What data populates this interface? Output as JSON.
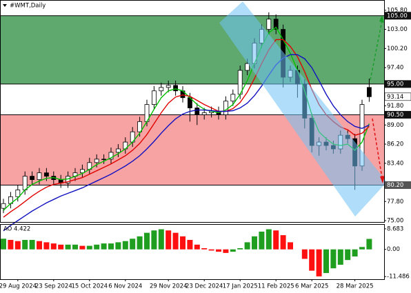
{
  "chart_data": [
    {
      "type": "candlestick",
      "title": "#WMT,Daily",
      "categories": [
        null,
        null,
        "29 Aug 2024",
        null,
        null,
        null,
        null,
        "23 Sep 2024",
        null,
        null,
        null,
        null,
        "15 Oct 2024",
        null,
        null,
        null,
        null,
        "6 Nov 2024",
        null,
        null,
        null,
        null,
        null,
        "29 Nov 2024",
        null,
        null,
        null,
        null,
        "23 Dec 2024",
        null,
        null,
        null,
        null,
        "17 Jan 2025",
        null,
        null,
        null,
        null,
        "11 Feb 2025",
        null,
        null,
        null,
        null,
        "6 Mar 2025",
        null,
        null,
        null,
        null,
        null,
        "28 Mar 2025",
        null,
        null
      ],
      "open": [
        76.8,
        77.5,
        78.5,
        79.5,
        81.5,
        81,
        82,
        81.5,
        81,
        80.5,
        81.5,
        82,
        82.5,
        83.5,
        84,
        84,
        85,
        85.5,
        86.5,
        88,
        89.5,
        92,
        94,
        94.5,
        94.8,
        94,
        93,
        91.5,
        90.5,
        90.8,
        91,
        90.5,
        92.5,
        93.5,
        97,
        98,
        101,
        103,
        104.5,
        103,
        96,
        97,
        95,
        90,
        86,
        86.5,
        86,
        85.5,
        87.5,
        87,
        83,
        94.5
      ],
      "high": [
        78.2,
        79.2,
        80.2,
        82.2,
        82.2,
        82.7,
        82.7,
        82.2,
        81.7,
        82.2,
        82.7,
        83.2,
        84.2,
        84.7,
        84.7,
        85.7,
        86.2,
        87.2,
        88.7,
        90.2,
        92.7,
        94.7,
        95.2,
        95.5,
        95.5,
        94.7,
        93.7,
        92.2,
        91.5,
        91.7,
        91.7,
        93.2,
        94.2,
        97.7,
        98.7,
        101.7,
        103.7,
        105.5,
        105.2,
        103.7,
        97.7,
        97.7,
        95.7,
        90.7,
        87.2,
        87.2,
        86.7,
        88.2,
        88.2,
        87.7,
        92.7,
        95.8
      ],
      "low": [
        76.1,
        76.8,
        77.8,
        78.8,
        80.3,
        80.3,
        80.8,
        80.3,
        79.8,
        79.8,
        80.8,
        81.3,
        81.8,
        82.8,
        83.3,
        83.3,
        84.3,
        84.8,
        85.8,
        87.3,
        88.8,
        91.3,
        93.3,
        93.8,
        93.3,
        92.3,
        89.5,
        89,
        89.8,
        90.1,
        89.8,
        89.8,
        91.8,
        92.8,
        96.3,
        97.3,
        100.3,
        102.3,
        102.3,
        94.5,
        95.3,
        93,
        88.5,
        85,
        84.5,
        85.3,
        84.8,
        84.8,
        86.3,
        79.5,
        82.3,
        92.4
      ],
      "close": [
        77.5,
        78.5,
        79.5,
        81.5,
        81,
        82,
        81.5,
        81,
        80.5,
        81.5,
        82,
        82.5,
        83.5,
        84,
        84,
        85,
        85.5,
        86.5,
        88,
        89.5,
        92,
        94,
        94.5,
        94.8,
        94,
        93,
        91.5,
        90.5,
        90.8,
        91,
        90.5,
        92.5,
        93.5,
        97,
        98,
        101,
        103,
        104.5,
        103,
        96,
        97,
        95,
        90,
        86,
        86.5,
        86,
        85.5,
        87.5,
        87,
        83,
        92,
        93.14
      ],
      "up_color": "#ffffff",
      "down_color": "#000000",
      "lines": [
        {
          "color": "#00c000",
          "values": [
            76.5,
            77.5,
            78.3,
            79.5,
            80.3,
            80.8,
            81.2,
            81.3,
            81,
            81.1,
            81.5,
            81.9,
            82.5,
            83.2,
            83.7,
            84.2,
            84.8,
            85.5,
            86.5,
            87.8,
            89.5,
            91.3,
            93,
            94,
            94.3,
            94,
            93,
            92,
            91.3,
            91,
            90.8,
            91.2,
            92,
            93.5,
            95.5,
            98,
            100.5,
            102.5,
            103.3,
            101.5,
            99.5,
            97,
            94,
            90.5,
            88,
            87,
            86.2,
            86,
            86.2,
            85.3,
            86.5,
            89.2
          ]
        },
        {
          "color": "#e00000",
          "values": [
            75.5,
            76.3,
            77,
            77.8,
            78.6,
            79.3,
            79.9,
            80.3,
            80.5,
            80.7,
            81,
            81.3,
            81.8,
            82.3,
            82.8,
            83.3,
            83.9,
            84.5,
            85.3,
            86.3,
            87.6,
            89.2,
            90.8,
            92.2,
            93.1,
            93.4,
            93.2,
            92.6,
            92,
            91.5,
            91,
            91,
            91.4,
            92.3,
            93.8,
            95.8,
            98,
            100,
            101.5,
            101.5,
            100.5,
            99,
            96.8,
            94.2,
            92,
            90.5,
            89.5,
            88.7,
            88.3,
            87.5,
            87.8,
            88.8
          ]
        },
        {
          "color": "#1010c0",
          "values": [
            73.5,
            74.3,
            75,
            75.7,
            76.4,
            77,
            77.6,
            78.1,
            78.6,
            79,
            79.4,
            79.8,
            80.3,
            80.8,
            81.3,
            81.8,
            82.4,
            83,
            83.7,
            84.5,
            85.5,
            86.6,
            87.8,
            88.9,
            89.9,
            90.6,
            91,
            91.2,
            91.2,
            91.1,
            91,
            91,
            91.1,
            91.5,
            92.2,
            93.3,
            94.7,
            96.3,
            97.8,
            98.8,
            99.3,
            99.3,
            98.7,
            97.4,
            95.5,
            93.5,
            91.8,
            90.5,
            89.5,
            88.8,
            88.5,
            89
          ]
        }
      ],
      "zones": [
        {
          "from": 95,
          "to": 105,
          "color": "#5fa96f"
        },
        {
          "from": 80.2,
          "to": 90.5,
          "color": "#f7a3a3"
        }
      ],
      "levels": [
        {
          "value": 105,
          "label": "105.00"
        },
        {
          "value": 95,
          "label": "95.00"
        },
        {
          "value": 90.5,
          "label": "90.50"
        },
        {
          "value": 80.2,
          "label": "80.20"
        }
      ],
      "ylim": [
        74.8,
        107.2
      ],
      "yticks": [
        {
          "value": 105.8,
          "label": "105.80"
        },
        {
          "value": 103,
          "label": "103.00"
        },
        {
          "value": 100.2,
          "label": "100.20"
        },
        {
          "value": 97.4,
          "label": "97.40"
        },
        {
          "value": 91.8,
          "label": "91.80"
        },
        {
          "value": 89,
          "label": "89.00"
        },
        {
          "value": 86.2,
          "label": "86.20"
        },
        {
          "value": 83.4,
          "label": "83.40"
        },
        {
          "value": 77.8,
          "label": "77.80"
        },
        {
          "value": 75,
          "label": "75.00"
        }
      ]
    },
    {
      "type": "bar",
      "title": "AO",
      "values": [
        4.5,
        4,
        3.5,
        4,
        4,
        3.5,
        3,
        2.5,
        2,
        2,
        2,
        1.5,
        1.5,
        2,
        2.5,
        2.5,
        3,
        3.5,
        4.5,
        5.5,
        7,
        8,
        8.5,
        8,
        7,
        5.5,
        4,
        2,
        0.5,
        -0.5,
        -1,
        -1.5,
        -1,
        0.5,
        3,
        5.5,
        7.5,
        8.5,
        8,
        6,
        3,
        0,
        -4,
        -9,
        -11.4,
        -10,
        -8,
        -6.5,
        -4.5,
        -3,
        1,
        4.422
      ],
      "up_color": "#1f9e1f",
      "down_color": "#ff1010",
      "ylim": [
        -12.6,
        10.4
      ],
      "yticks": [
        8.683,
        {
          "value": 0,
          "label": "0.00"
        },
        -11.486
      ]
    }
  ]
}
